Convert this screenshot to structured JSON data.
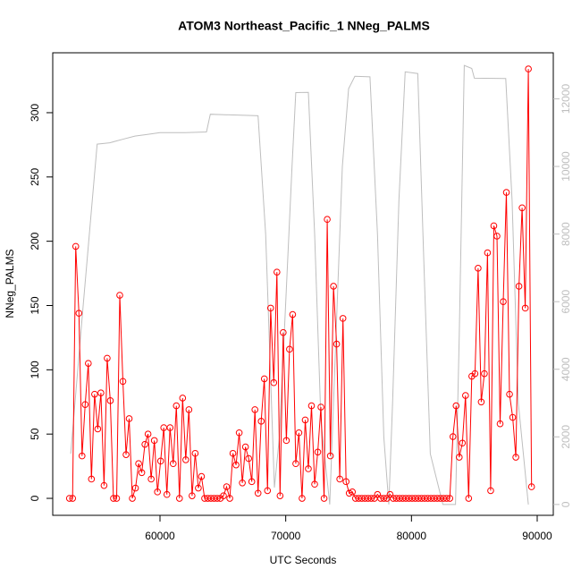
{
  "chart_data": {
    "type": "line",
    "title": "ATOM3 Northeast_Pacific_1 NNeg_PALMS",
    "x_label": "UTC Seconds",
    "y_label": "NNeg_PALMS",
    "xlim": [
      51470,
      91280
    ],
    "xticks": [
      60000,
      70000,
      80000,
      90000
    ],
    "ylim": [
      -13.2,
      346.6
    ],
    "yticks": [
      0,
      50,
      100,
      150,
      200,
      250,
      300
    ],
    "y2lim": [
      -321,
      13363
    ],
    "y2ticks": [
      0,
      2000,
      4000,
      6000,
      8000,
      10000,
      12000
    ],
    "series": [
      {
        "color": "#ff0000",
        "markers": true,
        "x": [
          52800,
          53050,
          53300,
          53550,
          53800,
          54050,
          54300,
          54550,
          54800,
          55050,
          55300,
          55550,
          55800,
          56050,
          56300,
          56550,
          56800,
          57050,
          57300,
          57550,
          57800,
          58050,
          58300,
          58550,
          58800,
          59050,
          59300,
          59550,
          59800,
          60050,
          60300,
          60550,
          60800,
          61050,
          61300,
          61550,
          61800,
          62050,
          62300,
          62550,
          62800,
          63050,
          63300,
          63550,
          63800,
          64050,
          64300,
          64550,
          64800,
          65050,
          65300,
          65550,
          65800,
          66050,
          66300,
          66550,
          66800,
          67050,
          67300,
          67550,
          67800,
          68050,
          68300,
          68550,
          68800,
          69050,
          69300,
          69550,
          69800,
          70050,
          70300,
          70550,
          70800,
          71050,
          71300,
          71550,
          71800,
          72050,
          72300,
          72550,
          72800,
          73050,
          73300,
          73550,
          73800,
          74050,
          74300,
          74550,
          74800,
          75050,
          75300,
          75550,
          75800,
          76050,
          76300,
          76550,
          76800,
          77050,
          77300,
          77550,
          77800,
          78050,
          78300,
          78550,
          78800,
          79050,
          79300,
          79550,
          79800,
          80050,
          80300,
          80550,
          80800,
          81050,
          81300,
          81550,
          81800,
          82050,
          82300,
          82550,
          82800,
          83050,
          83300,
          83550,
          83800,
          84050,
          84300,
          84550,
          84800,
          85050,
          85300,
          85550,
          85800,
          86050,
          86300,
          86550,
          86800,
          87050,
          87300,
          87550,
          87800,
          88050,
          88300,
          88550,
          88800,
          89050,
          89300,
          89550
        ],
        "values": [
          0,
          0,
          196,
          144,
          33,
          73,
          105,
          15,
          81,
          54,
          82,
          10,
          109,
          76,
          0,
          0,
          158,
          91,
          34,
          62,
          0,
          8,
          27,
          20,
          42,
          50,
          15,
          45,
          5,
          29,
          55,
          3,
          55,
          27,
          72,
          0,
          78,
          30,
          69,
          2,
          35,
          8,
          17,
          0,
          0,
          0,
          0,
          0,
          0,
          2,
          9,
          0,
          35,
          26,
          51,
          12,
          40,
          31,
          13,
          69,
          4,
          60,
          93,
          6,
          148,
          90,
          176,
          2,
          129,
          45,
          116,
          143,
          27,
          51,
          0,
          61,
          23,
          72,
          11,
          36,
          71,
          0,
          217,
          33,
          165,
          120,
          15,
          140,
          13,
          4,
          5,
          0,
          0,
          0,
          0,
          0,
          0,
          0,
          3,
          0,
          0,
          0,
          3,
          0,
          0,
          0,
          0,
          0,
          0,
          0,
          0,
          0,
          0,
          0,
          0,
          0,
          0,
          0,
          0,
          0,
          0,
          0,
          48,
          72,
          32,
          43,
          80,
          0,
          95,
          97,
          179,
          75,
          97,
          191,
          6,
          212,
          204,
          58,
          153,
          238,
          81,
          63,
          32,
          165,
          226,
          148,
          334,
          9
        ]
      },
      {
        "color": "#bebebe",
        "axis": "y2",
        "x": [
          52900,
          53800,
          54500,
          55000,
          56000,
          57000,
          58000,
          59000,
          60000,
          62000,
          63700,
          64000,
          67800,
          68400,
          69100,
          69500,
          70000,
          70500,
          70800,
          71800,
          72300,
          72800,
          73500,
          74000,
          74500,
          75000,
          75500,
          76700,
          77300,
          77800,
          78200,
          78500,
          79000,
          79500,
          80500,
          81000,
          81500,
          82500,
          83500,
          83800,
          84200,
          84800,
          85000,
          87500,
          88000,
          88500,
          89300
        ],
        "values": [
          1500,
          5500,
          8500,
          10660,
          10700,
          10800,
          10900,
          10950,
          11000,
          11000,
          11020,
          11545,
          11500,
          8000,
          500,
          2000,
          6000,
          10000,
          12186,
          12190,
          8000,
          2500,
          0,
          5000,
          10000,
          12300,
          12667,
          12650,
          8000,
          2000,
          0,
          3000,
          9000,
          12800,
          12750,
          7000,
          1500,
          0,
          0,
          5000,
          12990,
          12900,
          12610,
          12600,
          9000,
          3000,
          0
        ]
      }
    ]
  }
}
